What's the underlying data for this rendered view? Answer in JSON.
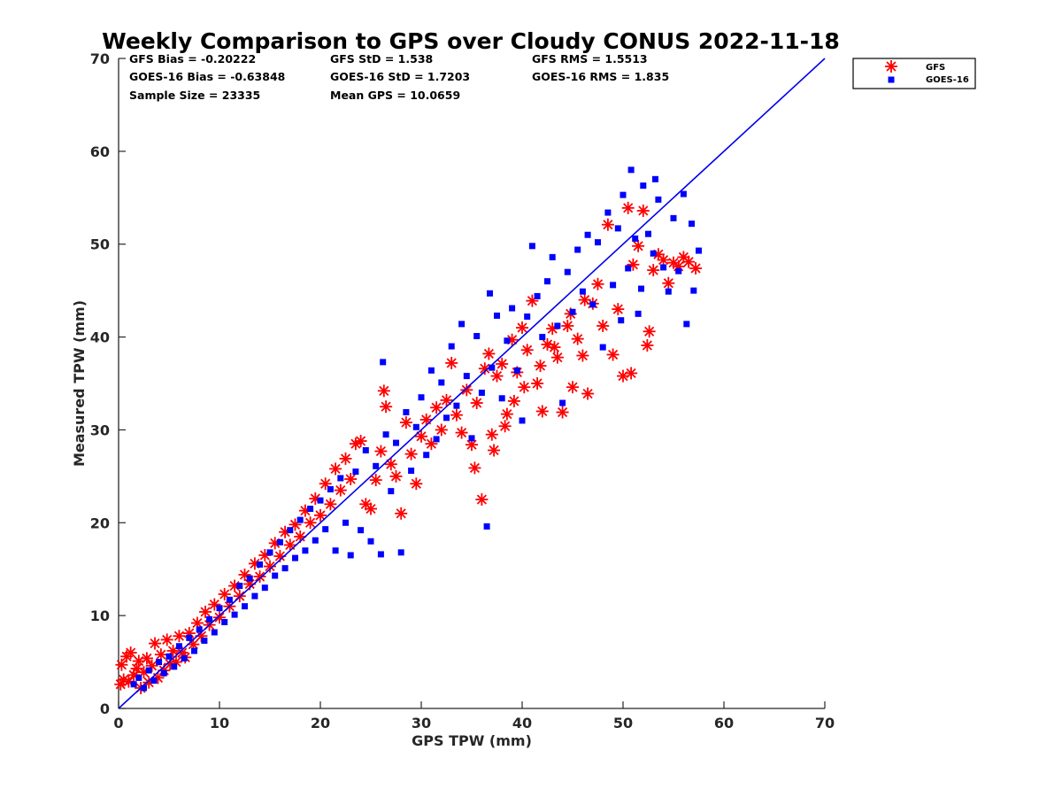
{
  "chart_data": {
    "type": "scatter",
    "title": "Weekly Comparison to GPS over Cloudy CONUS 2022-11-18",
    "xlabel": "GPS TPW (mm)",
    "ylabel": "Measured TPW (mm)",
    "xlim": [
      0,
      70
    ],
    "ylim": [
      0,
      70
    ],
    "xticks": [
      "0",
      "10",
      "20",
      "30",
      "40",
      "50",
      "60",
      "70"
    ],
    "yticks": [
      "0",
      "10",
      "20",
      "30",
      "40",
      "50",
      "60",
      "70"
    ],
    "grid": false,
    "legend_position": "top-right, outside plot",
    "stats": [
      "GFS Bias = -0.20222",
      "GFS StD = 1.538",
      "GFS RMS = 1.5513",
      "GOES-16 Bias = -0.63848",
      "GOES-16 StD = 1.7203",
      "GOES-16 RMS = 1.835",
      "Sample Size = 23335",
      "Mean GPS = 10.0659"
    ],
    "reference_line": {
      "from": [
        0,
        0
      ],
      "to": [
        70,
        70
      ],
      "color": "#0000ee"
    },
    "series": [
      {
        "name": "GFS",
        "marker": "asterisk",
        "color": "#ff0000",
        "points": [
          [
            0.2,
            2.6
          ],
          [
            0.3,
            4.7
          ],
          [
            0.5,
            3.1
          ],
          [
            0.8,
            5.6
          ],
          [
            1.0,
            2.9
          ],
          [
            1.2,
            6.0
          ],
          [
            1.5,
            3.6
          ],
          [
            1.8,
            4.3
          ],
          [
            2.0,
            5.1
          ],
          [
            2.2,
            2.2
          ],
          [
            2.5,
            3.9
          ],
          [
            2.8,
            5.4
          ],
          [
            3.0,
            2.8
          ],
          [
            3.3,
            4.6
          ],
          [
            3.6,
            7.0
          ],
          [
            3.9,
            3.3
          ],
          [
            4.2,
            5.8
          ],
          [
            4.5,
            4.1
          ],
          [
            4.8,
            7.4
          ],
          [
            5.1,
            4.8
          ],
          [
            5.4,
            6.2
          ],
          [
            5.7,
            5.0
          ],
          [
            6.0,
            7.8
          ],
          [
            6.3,
            6.0
          ],
          [
            6.6,
            5.5
          ],
          [
            7.0,
            8.1
          ],
          [
            7.4,
            6.9
          ],
          [
            7.8,
            9.2
          ],
          [
            8.2,
            7.8
          ],
          [
            8.6,
            10.4
          ],
          [
            9.0,
            9.0
          ],
          [
            9.5,
            11.2
          ],
          [
            10.0,
            9.8
          ],
          [
            10.5,
            12.3
          ],
          [
            11.0,
            11.0
          ],
          [
            11.5,
            13.2
          ],
          [
            12.0,
            12.1
          ],
          [
            12.5,
            14.4
          ],
          [
            13.0,
            13.4
          ],
          [
            13.5,
            15.6
          ],
          [
            14.0,
            14.2
          ],
          [
            14.5,
            16.5
          ],
          [
            15.0,
            15.3
          ],
          [
            15.5,
            17.8
          ],
          [
            16.0,
            16.4
          ],
          [
            16.5,
            19.0
          ],
          [
            17.0,
            17.6
          ],
          [
            17.5,
            19.8
          ],
          [
            18.0,
            18.5
          ],
          [
            18.5,
            21.3
          ],
          [
            19.0,
            20.0
          ],
          [
            19.5,
            22.6
          ],
          [
            20.0,
            20.8
          ],
          [
            20.5,
            24.2
          ],
          [
            21.0,
            22.0
          ],
          [
            21.5,
            25.8
          ],
          [
            22.0,
            23.5
          ],
          [
            22.5,
            26.9
          ],
          [
            23.0,
            24.7
          ],
          [
            23.5,
            28.5
          ],
          [
            24.0,
            28.8
          ],
          [
            24.5,
            22.0
          ],
          [
            25.0,
            21.5
          ],
          [
            25.5,
            24.6
          ],
          [
            26.0,
            27.7
          ],
          [
            26.3,
            34.2
          ],
          [
            26.5,
            32.5
          ],
          [
            27.0,
            26.3
          ],
          [
            27.5,
            25.0
          ],
          [
            28.0,
            21.0
          ],
          [
            28.5,
            30.8
          ],
          [
            29.0,
            27.4
          ],
          [
            29.5,
            24.2
          ],
          [
            30.0,
            29.3
          ],
          [
            30.5,
            31.1
          ],
          [
            31.0,
            28.5
          ],
          [
            31.5,
            32.4
          ],
          [
            32.0,
            30.0
          ],
          [
            32.5,
            33.2
          ],
          [
            33.0,
            37.2
          ],
          [
            33.5,
            31.6
          ],
          [
            34.0,
            29.7
          ],
          [
            34.5,
            34.3
          ],
          [
            35.0,
            28.4
          ],
          [
            35.3,
            25.9
          ],
          [
            35.5,
            32.9
          ],
          [
            36.0,
            22.5
          ],
          [
            36.3,
            36.6
          ],
          [
            36.7,
            38.2
          ],
          [
            37.0,
            29.5
          ],
          [
            37.5,
            35.8
          ],
          [
            38.0,
            37.1
          ],
          [
            38.5,
            31.7
          ],
          [
            39.0,
            39.7
          ],
          [
            39.5,
            36.2
          ],
          [
            40.0,
            41.0
          ],
          [
            40.5,
            38.6
          ],
          [
            41.0,
            43.9
          ],
          [
            41.5,
            35.0
          ],
          [
            42.0,
            32.0
          ],
          [
            42.5,
            39.2
          ],
          [
            43.0,
            40.9
          ],
          [
            43.5,
            37.8
          ],
          [
            44.0,
            31.9
          ],
          [
            44.5,
            41.2
          ],
          [
            45.0,
            34.6
          ],
          [
            45.5,
            39.8
          ],
          [
            46.0,
            38.0
          ],
          [
            46.5,
            33.9
          ],
          [
            47.0,
            43.6
          ],
          [
            47.5,
            45.7
          ],
          [
            48.0,
            41.2
          ],
          [
            48.5,
            52.1
          ],
          [
            49.0,
            38.1
          ],
          [
            49.5,
            43.0
          ],
          [
            50.0,
            35.8
          ],
          [
            50.5,
            53.9
          ],
          [
            50.8,
            36.1
          ],
          [
            51.0,
            47.8
          ],
          [
            51.5,
            49.8
          ],
          [
            52.0,
            53.6
          ],
          [
            52.4,
            39.1
          ],
          [
            52.6,
            40.6
          ],
          [
            53.0,
            47.2
          ],
          [
            53.5,
            48.9
          ],
          [
            54.0,
            48.3
          ],
          [
            54.5,
            45.8
          ],
          [
            55.0,
            48.0
          ],
          [
            55.5,
            47.6
          ],
          [
            56.0,
            48.6
          ],
          [
            56.5,
            48.1
          ],
          [
            57.2,
            47.4
          ],
          [
            46.2,
            44.0
          ],
          [
            44.8,
            42.5
          ],
          [
            43.2,
            38.9
          ],
          [
            41.8,
            36.9
          ],
          [
            40.2,
            34.6
          ],
          [
            39.2,
            33.1
          ],
          [
            38.3,
            30.4
          ],
          [
            37.2,
            27.8
          ]
        ]
      },
      {
        "name": "GOES-16",
        "marker": "square",
        "color": "#0000ff",
        "points": [
          [
            1.5,
            2.6
          ],
          [
            2.0,
            3.3
          ],
          [
            2.5,
            2.2
          ],
          [
            3.0,
            4.1
          ],
          [
            3.5,
            3.0
          ],
          [
            4.0,
            5.0
          ],
          [
            4.5,
            3.8
          ],
          [
            5.0,
            5.6
          ],
          [
            5.5,
            4.5
          ],
          [
            6.0,
            6.7
          ],
          [
            6.5,
            5.4
          ],
          [
            7.0,
            7.6
          ],
          [
            7.5,
            6.2
          ],
          [
            8.0,
            8.5
          ],
          [
            8.5,
            7.3
          ],
          [
            9.0,
            9.6
          ],
          [
            9.5,
            8.2
          ],
          [
            10.0,
            10.8
          ],
          [
            10.5,
            9.3
          ],
          [
            11.0,
            11.7
          ],
          [
            11.5,
            10.1
          ],
          [
            12.0,
            13.2
          ],
          [
            12.5,
            11.0
          ],
          [
            13.0,
            14.0
          ],
          [
            13.5,
            12.1
          ],
          [
            14.0,
            15.5
          ],
          [
            14.5,
            13.0
          ],
          [
            15.0,
            16.8
          ],
          [
            15.5,
            14.3
          ],
          [
            16.0,
            17.9
          ],
          [
            16.5,
            15.1
          ],
          [
            17.0,
            19.2
          ],
          [
            17.5,
            16.2
          ],
          [
            18.0,
            20.3
          ],
          [
            18.5,
            17.0
          ],
          [
            19.0,
            21.5
          ],
          [
            19.5,
            18.1
          ],
          [
            20.0,
            22.4
          ],
          [
            20.5,
            19.3
          ],
          [
            21.0,
            23.6
          ],
          [
            21.5,
            17.0
          ],
          [
            22.0,
            24.8
          ],
          [
            22.5,
            20.0
          ],
          [
            23.0,
            16.5
          ],
          [
            23.5,
            25.5
          ],
          [
            24.0,
            19.2
          ],
          [
            24.5,
            27.8
          ],
          [
            25.0,
            18.0
          ],
          [
            25.5,
            26.1
          ],
          [
            26.0,
            16.6
          ],
          [
            26.2,
            37.3
          ],
          [
            26.5,
            29.5
          ],
          [
            27.0,
            23.4
          ],
          [
            27.5,
            28.6
          ],
          [
            28.0,
            16.8
          ],
          [
            28.5,
            31.9
          ],
          [
            29.0,
            25.6
          ],
          [
            29.5,
            30.3
          ],
          [
            30.0,
            33.5
          ],
          [
            30.5,
            27.3
          ],
          [
            31.0,
            36.4
          ],
          [
            31.5,
            29.0
          ],
          [
            32.0,
            35.1
          ],
          [
            32.5,
            31.3
          ],
          [
            33.0,
            39.0
          ],
          [
            33.5,
            32.6
          ],
          [
            34.0,
            41.4
          ],
          [
            34.5,
            35.8
          ],
          [
            35.0,
            29.1
          ],
          [
            35.5,
            40.1
          ],
          [
            36.0,
            34.0
          ],
          [
            36.5,
            19.6
          ],
          [
            36.8,
            44.7
          ],
          [
            37.0,
            36.7
          ],
          [
            37.5,
            42.3
          ],
          [
            38.0,
            33.4
          ],
          [
            38.5,
            39.6
          ],
          [
            39.0,
            43.1
          ],
          [
            39.5,
            36.4
          ],
          [
            40.0,
            31.0
          ],
          [
            40.5,
            42.2
          ],
          [
            41.0,
            49.8
          ],
          [
            41.5,
            44.4
          ],
          [
            42.0,
            40.0
          ],
          [
            42.5,
            46.0
          ],
          [
            43.0,
            48.6
          ],
          [
            43.5,
            41.2
          ],
          [
            44.0,
            32.9
          ],
          [
            44.5,
            47.0
          ],
          [
            45.0,
            42.7
          ],
          [
            45.5,
            49.4
          ],
          [
            46.0,
            44.9
          ],
          [
            46.5,
            51.0
          ],
          [
            47.0,
            43.5
          ],
          [
            47.5,
            50.2
          ],
          [
            48.0,
            38.9
          ],
          [
            48.5,
            53.4
          ],
          [
            49.0,
            45.6
          ],
          [
            49.5,
            51.7
          ],
          [
            50.0,
            55.3
          ],
          [
            50.5,
            47.4
          ],
          [
            50.8,
            58.0
          ],
          [
            51.2,
            50.6
          ],
          [
            51.5,
            42.5
          ],
          [
            52.0,
            56.3
          ],
          [
            52.5,
            51.1
          ],
          [
            53.0,
            49.0
          ],
          [
            53.5,
            54.8
          ],
          [
            54.0,
            47.5
          ],
          [
            54.5,
            44.9
          ],
          [
            55.0,
            52.8
          ],
          [
            55.5,
            47.1
          ],
          [
            56.0,
            55.4
          ],
          [
            56.3,
            41.4
          ],
          [
            56.8,
            52.2
          ],
          [
            57.0,
            45.0
          ],
          [
            57.5,
            49.3
          ],
          [
            53.2,
            57.0
          ],
          [
            51.8,
            45.2
          ],
          [
            49.8,
            41.8
          ]
        ]
      }
    ]
  }
}
